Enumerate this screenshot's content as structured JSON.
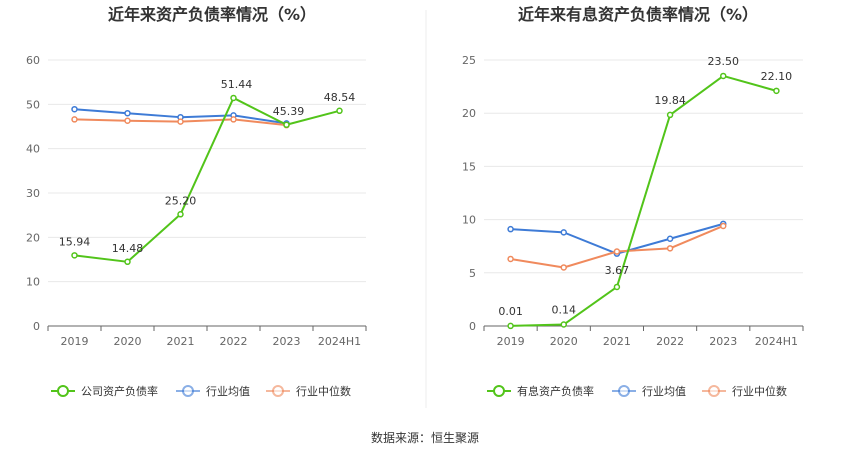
{
  "source": "数据来源：恒生聚源",
  "colors": {
    "green": "#52c41a",
    "blue": "#3e7bd6",
    "orange": "#f08a5d",
    "grid": "#e8e8e8",
    "axis": "#666666"
  },
  "chart_data": [
    {
      "type": "line",
      "title": "近年来资产负债率情况（%）",
      "categories": [
        "2019",
        "2020",
        "2021",
        "2022",
        "2023",
        "2024H1"
      ],
      "ylim": [
        0,
        60
      ],
      "yticks": [
        "0",
        "10",
        "20",
        "30",
        "40",
        "50",
        "60"
      ],
      "series": [
        {
          "name": "公司资产负债率",
          "color": "#52c41a",
          "values": [
            15.94,
            14.48,
            25.2,
            51.44,
            45.39,
            48.54
          ],
          "labels": [
            "15.94",
            "14.48",
            "25.20",
            "51.44",
            "45.39",
            "48.54"
          ]
        },
        {
          "name": "行业均值",
          "color": "#3e7bd6",
          "values": [
            48.9,
            48.0,
            47.1,
            47.5,
            45.7,
            null
          ]
        },
        {
          "name": "行业中位数",
          "color": "#f08a5d",
          "values": [
            46.6,
            46.3,
            46.1,
            46.6,
            45.3,
            null
          ]
        }
      ],
      "legend_position": "bottom",
      "grid": true
    },
    {
      "type": "line",
      "title": "近年来有息资产负债率情况（%）",
      "categories": [
        "2019",
        "2020",
        "2021",
        "2022",
        "2023",
        "2024H1"
      ],
      "ylim": [
        0,
        25
      ],
      "yticks": [
        "0",
        "5",
        "10",
        "15",
        "20",
        "25"
      ],
      "series": [
        {
          "name": "有息资产负债率",
          "color": "#52c41a",
          "values": [
            0.01,
            0.14,
            3.67,
            19.84,
            23.5,
            22.1
          ],
          "labels": [
            "0.01",
            "0.14",
            "3.67",
            "19.84",
            "23.50",
            "22.10"
          ]
        },
        {
          "name": "行业均值",
          "color": "#3e7bd6",
          "values": [
            9.1,
            8.8,
            6.8,
            8.2,
            9.6,
            null
          ]
        },
        {
          "name": "行业中位数",
          "color": "#f08a5d",
          "values": [
            6.3,
            5.5,
            7.0,
            7.3,
            9.4,
            null
          ]
        }
      ],
      "legend_position": "bottom",
      "grid": true
    }
  ]
}
